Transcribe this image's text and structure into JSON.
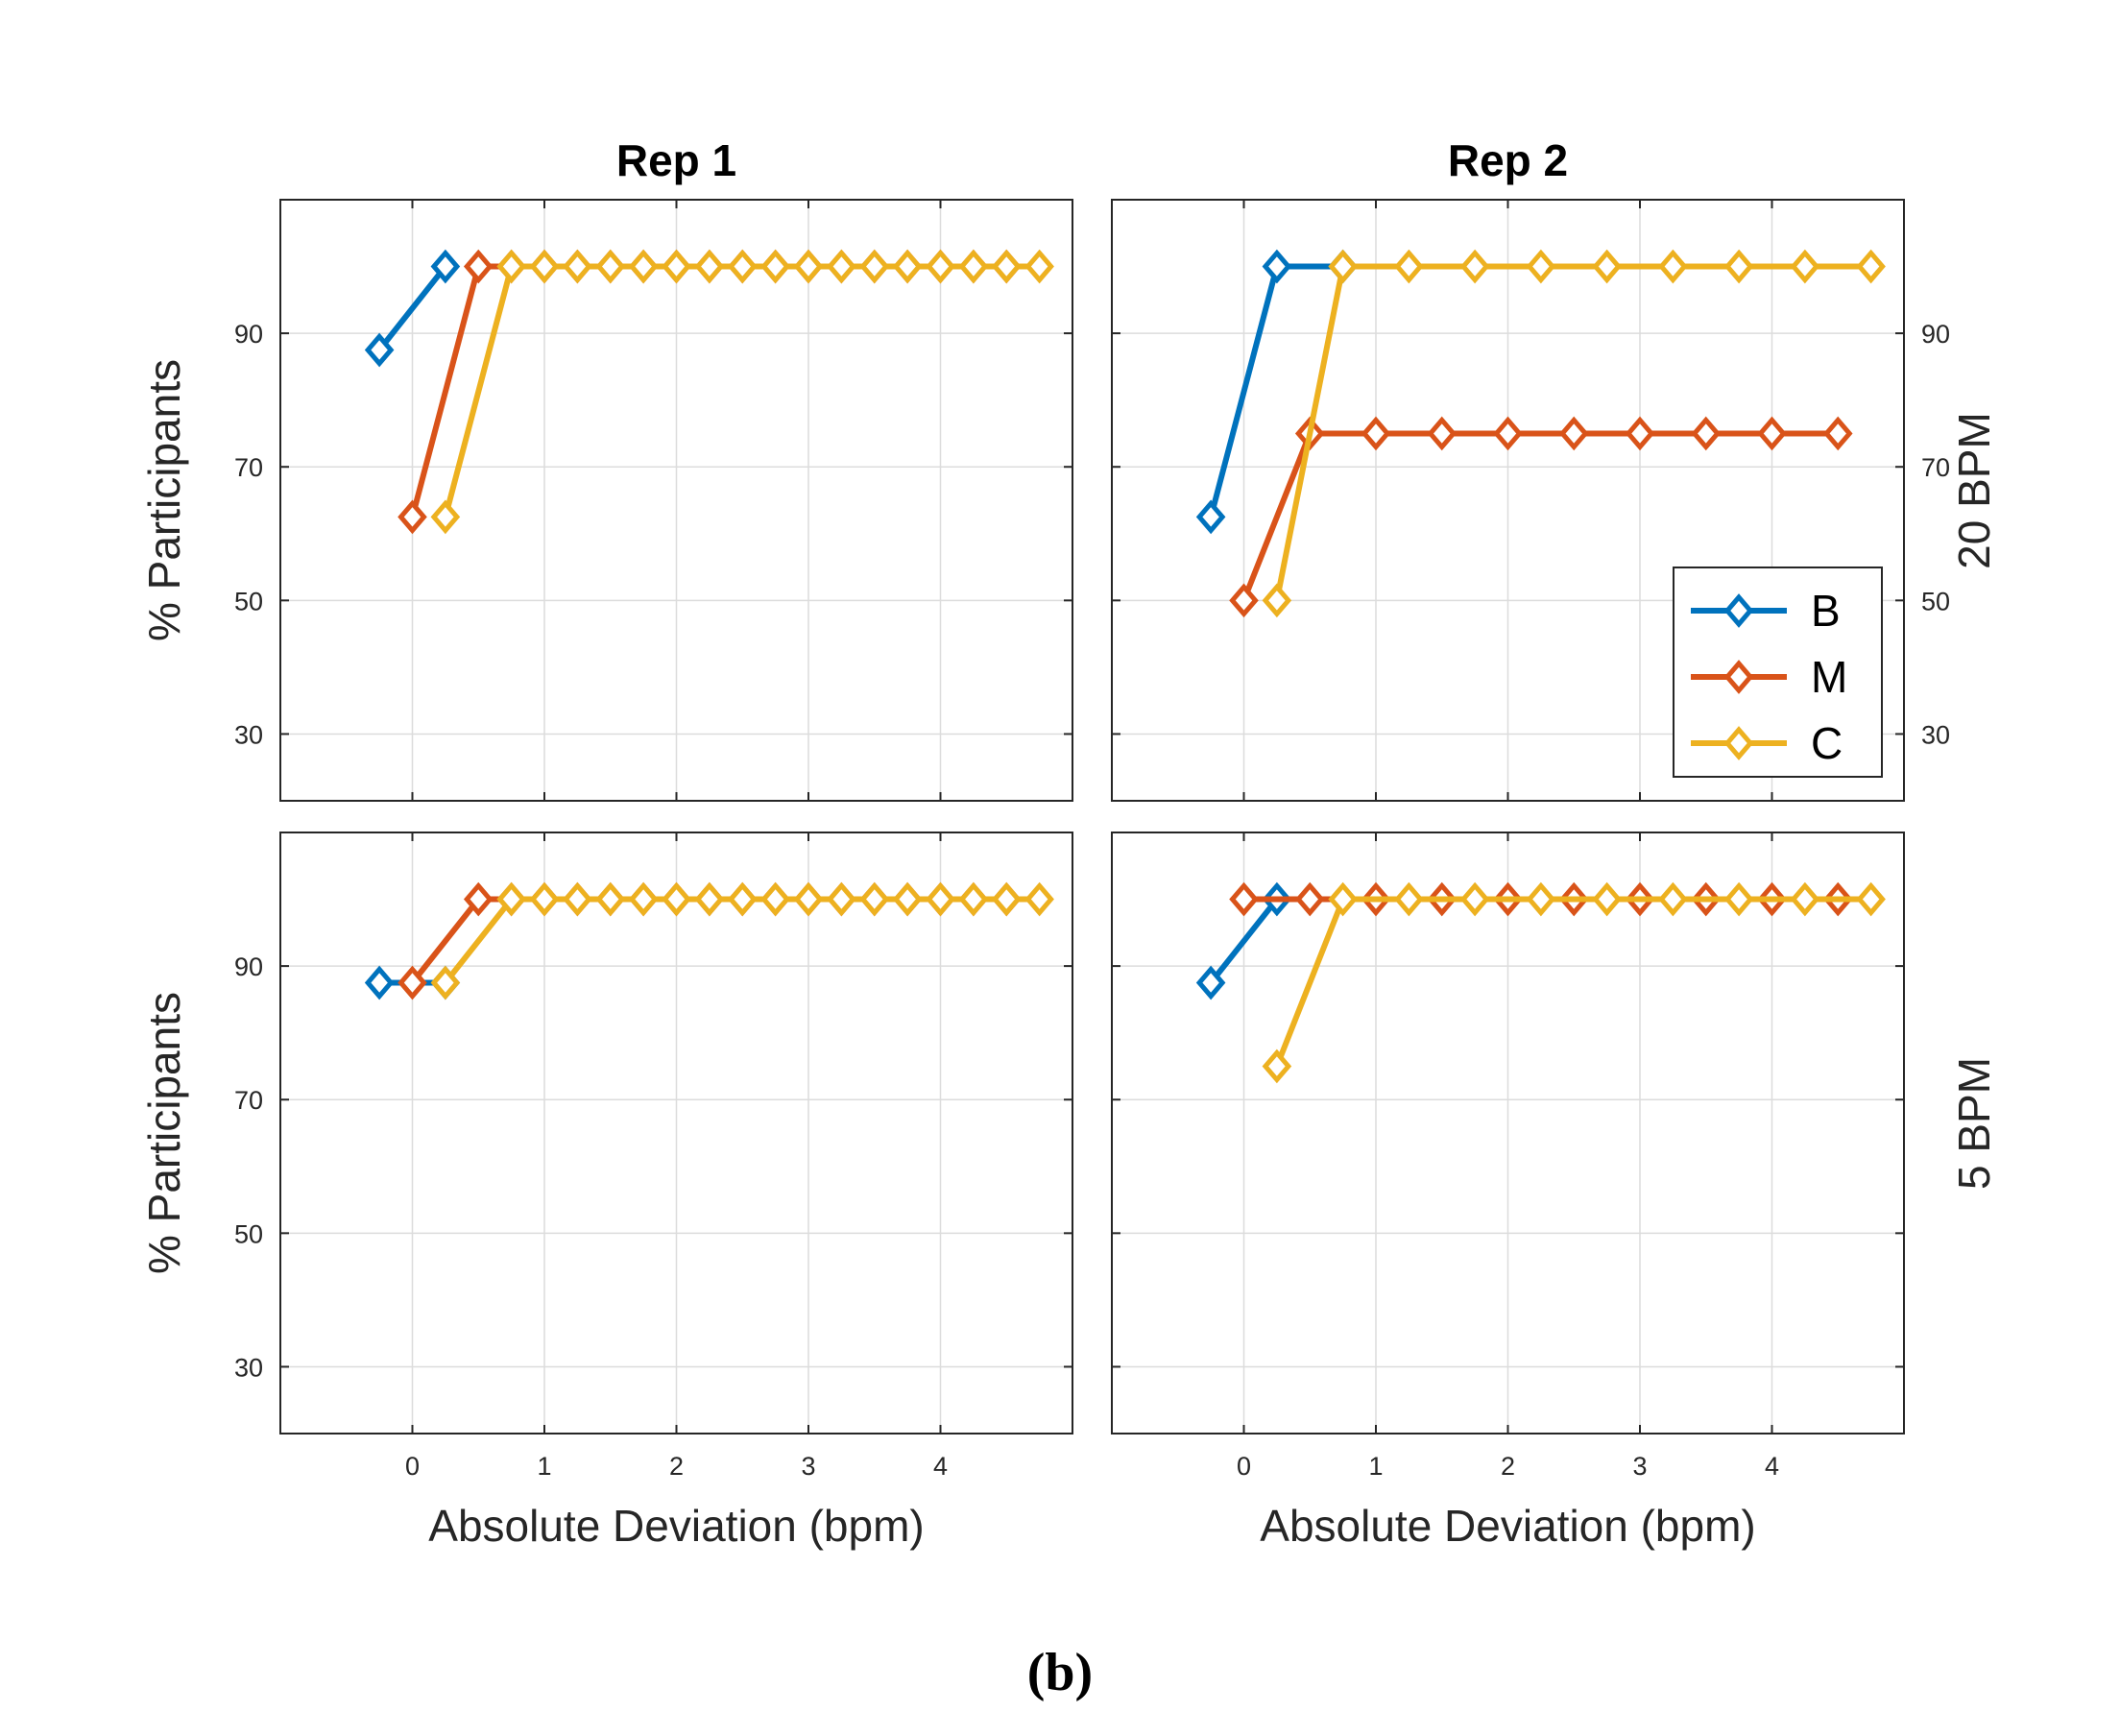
{
  "figure_caption": "(b)",
  "colors": {
    "B": "#0072BD",
    "M": "#D95319",
    "C": "#EDB120",
    "grid": "#DCDCDC",
    "axis": "#262626"
  },
  "chart_data": [
    {
      "type": "line",
      "title": "Rep 1",
      "row_label": "",
      "xlabel": "Absolute Deviation (bpm)",
      "ylabel": "% Participants",
      "xlim": [
        -1,
        5
      ],
      "ylim": [
        20,
        110
      ],
      "xticks": [
        "0",
        "1",
        "2",
        "3",
        "4"
      ],
      "yticks": [
        "30",
        "50",
        "70",
        "90"
      ],
      "grid": true,
      "series": [
        {
          "name": "B",
          "x": [
            -0.25,
            0.25
          ],
          "y": [
            87.5,
            100
          ]
        },
        {
          "name": "M",
          "x": [
            0,
            0.5,
            0.75,
            1,
            1.25,
            1.5,
            1.75,
            2,
            2.25,
            2.5,
            2.75,
            3,
            3.25,
            3.5,
            3.75,
            4,
            4.25,
            4.5
          ],
          "y": [
            62.5,
            100,
            100,
            100,
            100,
            100,
            100,
            100,
            100,
            100,
            100,
            100,
            100,
            100,
            100,
            100,
            100,
            100
          ]
        },
        {
          "name": "C",
          "x": [
            0.25,
            0.75,
            1,
            1.25,
            1.5,
            1.75,
            2,
            2.25,
            2.5,
            2.75,
            3,
            3.25,
            3.5,
            3.75,
            4,
            4.25,
            4.5,
            4.75
          ],
          "y": [
            62.5,
            100,
            100,
            100,
            100,
            100,
            100,
            100,
            100,
            100,
            100,
            100,
            100,
            100,
            100,
            100,
            100,
            100
          ]
        }
      ]
    },
    {
      "type": "line",
      "title": "Rep 2",
      "row_label": "20 BPM",
      "xlabel": "",
      "ylabel": "",
      "xlim": [
        -1,
        5
      ],
      "ylim": [
        20,
        110
      ],
      "xticks": [
        "0",
        "1",
        "2",
        "3",
        "4"
      ],
      "yticks": [
        "30",
        "50",
        "70",
        "90"
      ],
      "grid": true,
      "legend": {
        "entries": [
          "B",
          "M",
          "C"
        ],
        "location": "bottom-right"
      },
      "series": [
        {
          "name": "B",
          "x": [
            -0.25,
            0.25,
            0.75
          ],
          "y": [
            62.5,
            100,
            100
          ]
        },
        {
          "name": "M",
          "x": [
            0,
            0.5,
            1,
            1.5,
            2,
            2.5,
            3,
            3.5,
            4,
            4.5
          ],
          "y": [
            50,
            75,
            75,
            75,
            75,
            75,
            75,
            75,
            75,
            75
          ]
        },
        {
          "name": "C",
          "x": [
            0.25,
            0.75,
            1.25,
            1.75,
            2.25,
            2.75,
            3.25,
            3.75,
            4.25,
            4.75
          ],
          "y": [
            50,
            100,
            100,
            100,
            100,
            100,
            100,
            100,
            100,
            100
          ]
        }
      ]
    },
    {
      "type": "line",
      "title": "",
      "row_label": "",
      "xlabel": "Absolute Deviation (bpm)",
      "ylabel": "% Participants",
      "xlim": [
        -1,
        5
      ],
      "ylim": [
        20,
        110
      ],
      "xticks": [
        "0",
        "1",
        "2",
        "3",
        "4"
      ],
      "yticks": [
        "30",
        "50",
        "70",
        "90"
      ],
      "grid": true,
      "series": [
        {
          "name": "B",
          "x": [
            -0.25,
            0.25
          ],
          "y": [
            87.5,
            87.5
          ]
        },
        {
          "name": "M",
          "x": [
            0,
            0.5,
            0.75,
            1,
            1.25,
            1.5,
            1.75,
            2,
            2.25,
            2.5,
            2.75,
            3,
            3.25,
            3.5,
            3.75,
            4,
            4.25,
            4.5
          ],
          "y": [
            87.5,
            100,
            100,
            100,
            100,
            100,
            100,
            100,
            100,
            100,
            100,
            100,
            100,
            100,
            100,
            100,
            100,
            100
          ]
        },
        {
          "name": "C",
          "x": [
            0.25,
            0.75,
            1,
            1.25,
            1.5,
            1.75,
            2,
            2.25,
            2.5,
            2.75,
            3,
            3.25,
            3.5,
            3.75,
            4,
            4.25,
            4.5,
            4.75
          ],
          "y": [
            87.5,
            100,
            100,
            100,
            100,
            100,
            100,
            100,
            100,
            100,
            100,
            100,
            100,
            100,
            100,
            100,
            100,
            100
          ]
        }
      ]
    },
    {
      "type": "line",
      "title": "",
      "row_label": "5 BPM",
      "xlabel": "Absolute Deviation (bpm)",
      "ylabel": "",
      "xlim": [
        -1,
        5
      ],
      "ylim": [
        20,
        110
      ],
      "xticks": [
        "0",
        "1",
        "2",
        "3",
        "4"
      ],
      "yticks": [],
      "grid": true,
      "series": [
        {
          "name": "B",
          "x": [
            -0.25,
            0.25
          ],
          "y": [
            87.5,
            100
          ]
        },
        {
          "name": "M",
          "x": [
            0,
            0.5,
            1,
            1.5,
            2,
            2.5,
            3,
            3.5,
            4,
            4.5
          ],
          "y": [
            100,
            100,
            100,
            100,
            100,
            100,
            100,
            100,
            100,
            100
          ]
        },
        {
          "name": "C",
          "x": [
            0.25,
            0.75,
            1.25,
            1.75,
            2.25,
            2.75,
            3.25,
            3.75,
            4.25,
            4.75
          ],
          "y": [
            75,
            100,
            100,
            100,
            100,
            100,
            100,
            100,
            100,
            100
          ]
        }
      ]
    }
  ]
}
